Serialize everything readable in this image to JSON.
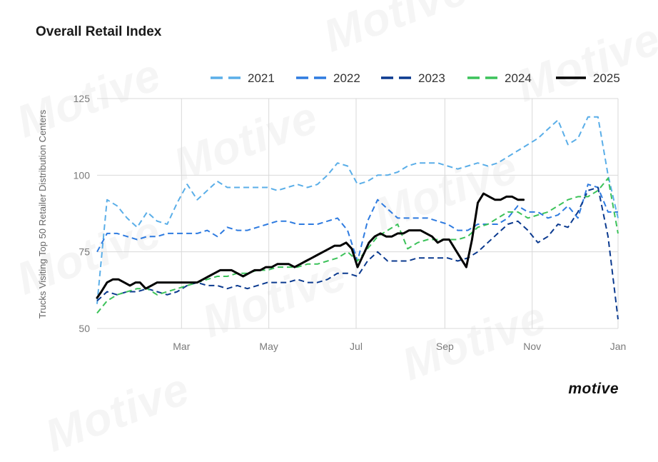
{
  "title": "Overall Retail Index",
  "brand": "motive",
  "watermark_text": "Motive",
  "colors": {
    "background": "#ffffff",
    "grid": "#d9d9d9",
    "axis_text": "#7a7a7a"
  },
  "chart_data": {
    "type": "line",
    "title": "Overall Retail Index",
    "xlabel": "",
    "ylabel": "Trucks Visiting Top 50 Retailer Distribution Centers",
    "ylim": [
      50,
      125
    ],
    "yticks": [
      50,
      75,
      100,
      125
    ],
    "xlim": [
      1,
      365
    ],
    "xticks": [
      {
        "label": "Mar",
        "day": 60
      },
      {
        "label": "May",
        "day": 121
      },
      {
        "label": "Jul",
        "day": 182
      },
      {
        "label": "Sep",
        "day": 244
      },
      {
        "label": "Nov",
        "day": 305
      },
      {
        "label": "Jan",
        "day": 365
      }
    ],
    "grid": true,
    "legend_position": "top-right",
    "series": [
      {
        "name": "2021",
        "color": "#5aaee8",
        "style": "dashed",
        "x": [
          1,
          8,
          15,
          22,
          29,
          36,
          43,
          50,
          57,
          64,
          71,
          78,
          85,
          92,
          99,
          106,
          113,
          120,
          127,
          134,
          141,
          148,
          155,
          162,
          169,
          176,
          183,
          190,
          197,
          204,
          211,
          218,
          225,
          232,
          239,
          246,
          253,
          260,
          267,
          274,
          281,
          288,
          295,
          302,
          309,
          316,
          323,
          330,
          337,
          344,
          351,
          358,
          365
        ],
        "values": [
          58,
          92,
          90,
          86,
          83,
          88,
          85,
          84,
          91,
          97,
          92,
          95,
          98,
          96,
          96,
          96,
          96,
          96,
          95,
          96,
          97,
          96,
          97,
          100,
          104,
          103,
          97,
          98,
          100,
          100,
          101,
          103,
          104,
          104,
          104,
          103,
          102,
          103,
          104,
          103,
          104,
          106,
          108,
          110,
          112,
          115,
          118,
          110,
          112,
          119,
          119,
          100,
          86
        ]
      },
      {
        "name": "2022",
        "color": "#2e7be0",
        "style": "dashed",
        "x": [
          1,
          8,
          15,
          22,
          29,
          36,
          43,
          50,
          57,
          64,
          71,
          78,
          85,
          92,
          99,
          106,
          113,
          120,
          127,
          134,
          141,
          148,
          155,
          162,
          169,
          176,
          183,
          190,
          197,
          204,
          211,
          218,
          225,
          232,
          239,
          246,
          253,
          260,
          267,
          274,
          281,
          288,
          295,
          302,
          309,
          316,
          323,
          330,
          337,
          344,
          351,
          358,
          365
        ],
        "values": [
          75,
          81,
          81,
          80,
          79,
          80,
          80,
          81,
          81,
          81,
          81,
          82,
          80,
          83,
          82,
          82,
          83,
          84,
          85,
          85,
          84,
          84,
          84,
          85,
          86,
          82,
          72,
          85,
          92,
          89,
          86,
          86,
          86,
          86,
          85,
          84,
          82,
          82,
          84,
          84,
          84,
          86,
          90,
          88,
          88,
          86,
          87,
          90,
          86,
          97,
          96,
          88,
          88
        ]
      },
      {
        "name": "2023",
        "color": "#0b3a8f",
        "style": "dashed",
        "x": [
          1,
          8,
          15,
          22,
          29,
          36,
          43,
          50,
          57,
          64,
          71,
          78,
          85,
          92,
          99,
          106,
          113,
          120,
          127,
          134,
          141,
          148,
          155,
          162,
          169,
          176,
          183,
          190,
          197,
          204,
          211,
          218,
          225,
          232,
          239,
          246,
          253,
          260,
          267,
          274,
          281,
          288,
          295,
          302,
          309,
          316,
          323,
          330,
          337,
          344,
          351,
          358,
          365
        ],
        "values": [
          59,
          62,
          61,
          62,
          62,
          63,
          62,
          61,
          62,
          64,
          65,
          64,
          64,
          63,
          64,
          63,
          64,
          65,
          65,
          65,
          66,
          65,
          65,
          66,
          68,
          68,
          67,
          72,
          75,
          72,
          72,
          72,
          73,
          73,
          73,
          73,
          72,
          73,
          75,
          78,
          81,
          84,
          85,
          82,
          78,
          80,
          84,
          83,
          88,
          95,
          96,
          80,
          53
        ]
      },
      {
        "name": "2024",
        "color": "#3cc25a",
        "style": "dashed",
        "x": [
          1,
          8,
          15,
          22,
          29,
          36,
          43,
          50,
          57,
          64,
          71,
          78,
          85,
          92,
          99,
          106,
          113,
          120,
          127,
          134,
          141,
          148,
          155,
          162,
          169,
          176,
          183,
          190,
          197,
          204,
          211,
          218,
          225,
          232,
          239,
          246,
          253,
          260,
          267,
          274,
          281,
          288,
          295,
          302,
          309,
          316,
          323,
          330,
          337,
          344,
          351,
          358,
          365
        ],
        "values": [
          55,
          59,
          61,
          62,
          63,
          63,
          61,
          62,
          63,
          64,
          65,
          66,
          67,
          67,
          68,
          68,
          69,
          69,
          70,
          70,
          70,
          71,
          71,
          72,
          73,
          75,
          72,
          76,
          80,
          82,
          84,
          76,
          78,
          79,
          79,
          79,
          79,
          80,
          83,
          84,
          86,
          88,
          88,
          86,
          87,
          88,
          90,
          92,
          93,
          93,
          95,
          99,
          81
        ]
      },
      {
        "name": "2025",
        "color": "#000000",
        "style": "solid",
        "x": [
          1,
          4,
          8,
          12,
          16,
          20,
          24,
          28,
          31,
          35,
          39,
          43,
          47,
          51,
          55,
          59,
          63,
          67,
          71,
          75,
          79,
          83,
          87,
          91,
          95,
          99,
          103,
          107,
          111,
          115,
          119,
          123,
          127,
          131,
          135,
          139,
          143,
          147,
          151,
          155,
          159,
          163,
          167,
          171,
          175,
          179,
          183,
          187,
          191,
          195,
          199,
          203,
          207,
          211,
          215,
          219,
          223,
          227,
          231,
          235,
          239,
          243,
          247,
          251,
          255,
          259,
          263,
          267,
          271,
          275,
          279,
          283,
          287,
          291,
          295,
          299
        ],
        "values": [
          60,
          62,
          65,
          66,
          66,
          65,
          64,
          65,
          65,
          63,
          64,
          65,
          65,
          65,
          65,
          65,
          65,
          65,
          65,
          66,
          67,
          68,
          69,
          69,
          69,
          68,
          67,
          68,
          69,
          69,
          70,
          70,
          71,
          71,
          71,
          70,
          71,
          72,
          73,
          74,
          75,
          76,
          77,
          77,
          78,
          76,
          70,
          74,
          78,
          80,
          81,
          80,
          80,
          81,
          81,
          82,
          82,
          82,
          81,
          80,
          78,
          79,
          79,
          76,
          73,
          70,
          79,
          91,
          94,
          93,
          92,
          92,
          93,
          93,
          92,
          92
        ]
      }
    ]
  }
}
